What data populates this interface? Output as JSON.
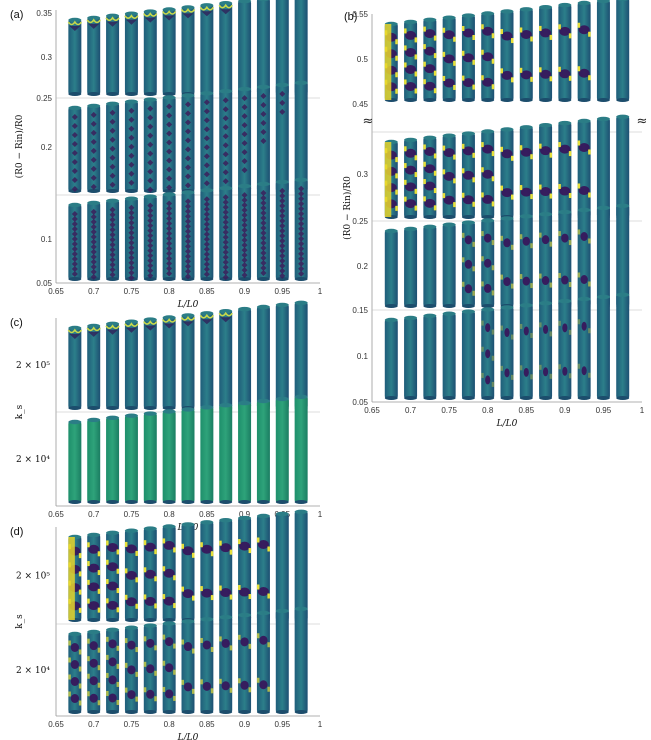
{
  "figure": {
    "break_mark": "≈",
    "panels": [
      {
        "label": "(a)",
        "ylabel": "(R0 − Rin)/R0",
        "xlabel": "L/L0",
        "xlim": [
          0.65,
          1
        ],
        "xticks": [
          "0.65",
          "0.7",
          "0.75",
          "0.8",
          "0.85",
          "0.9",
          "0.95",
          "1"
        ],
        "rows": [
          {
            "ylim": [
              0.25,
              0.35
            ],
            "yticks": [
              "0.35",
              "0.3",
              "0.25"
            ],
            "pattern": "top-buckle"
          },
          {
            "ylim": [
              0.15,
              0.25
            ],
            "yticks": [
              "0.2"
            ],
            "pattern": "diamond"
          },
          {
            "ylim": [
              0.05,
              0.15
            ],
            "yticks": [
              "0.1",
              "0.05"
            ],
            "pattern": "fine-diamond"
          }
        ]
      },
      {
        "label": "(b)",
        "ylabel": "(R0 − Rin)/R0",
        "xlabel": "L/L0",
        "xlim": [
          0.65,
          1
        ],
        "xticks": [
          "0.65",
          "0.7",
          "0.75",
          "0.8",
          "0.85",
          "0.9",
          "0.95",
          "1"
        ],
        "rows": [
          {
            "ylim": [
              0.45,
              0.55
            ],
            "yticks": [
              "0.55",
              "0.5",
              "0.45"
            ],
            "pattern": "waviness"
          },
          {
            "ylim": [
              0.25,
              0.35
            ],
            "yticks": [
              "0.3",
              "0.25"
            ],
            "pattern": "waviness"
          },
          {
            "ylim": [
              0.15,
              0.25
            ],
            "yticks": [
              "0.2",
              "0.15"
            ],
            "pattern": "waviness-partial"
          },
          {
            "ylim": [
              0.05,
              0.15
            ],
            "yticks": [
              "0.1",
              "0.05"
            ],
            "pattern": "waviness-weak"
          }
        ]
      },
      {
        "label": "(c)",
        "ylabel": "k_s",
        "xlabel": "L/L0",
        "xlim": [
          0.65,
          1
        ],
        "xticks": [
          "0.65",
          "0.7",
          "0.75",
          "0.8",
          "0.85",
          "0.9",
          "0.95",
          "1"
        ],
        "rows": [
          {
            "ylabel_value": "2 × 10⁵",
            "pattern": "top-buckle"
          },
          {
            "ylabel_value": "2 × 10⁴",
            "pattern": "green-smooth"
          }
        ]
      },
      {
        "label": "(d)",
        "ylabel": "k_s",
        "xlabel": "L/L0",
        "xlim": [
          0.65,
          1
        ],
        "xticks": [
          "0.65",
          "0.7",
          "0.75",
          "0.8",
          "0.85",
          "0.9",
          "0.95",
          "1"
        ],
        "rows": [
          {
            "ylabel_value": "2 × 10⁵",
            "pattern": "waviness"
          },
          {
            "ylabel_value": "2 × 10⁴",
            "pattern": "waviness-soft"
          }
        ]
      }
    ]
  },
  "chart_data": [
    {
      "type": "scatter",
      "title": "(a)",
      "xlabel": "L/L0",
      "ylabel": "(R0 − Rin)/R0",
      "xlim": [
        0.65,
        1
      ],
      "series": [
        {
          "x": [
            0.675,
            0.7,
            0.725,
            0.75,
            0.775,
            0.8,
            0.825,
            0.85,
            0.875,
            0.9,
            0.925,
            0.95,
            0.975
          ],
          "y": [
            0.3,
            0.3,
            0.3,
            0.3,
            0.3,
            0.3,
            0.3,
            0.3,
            0.3,
            0.3,
            0.3,
            0.3,
            0.3
          ]
        },
        {
          "x": [
            0.675,
            0.7,
            0.725,
            0.75,
            0.775,
            0.8,
            0.825,
            0.85,
            0.875,
            0.9,
            0.925,
            0.95,
            0.975
          ],
          "y": [
            0.2,
            0.2,
            0.2,
            0.2,
            0.2,
            0.2,
            0.2,
            0.2,
            0.2,
            0.2,
            0.2,
            0.2,
            0.2
          ]
        },
        {
          "x": [
            0.675,
            0.7,
            0.725,
            0.75,
            0.775,
            0.8,
            0.825,
            0.85,
            0.875,
            0.9,
            0.925,
            0.95,
            0.975
          ],
          "y": [
            0.1,
            0.1,
            0.1,
            0.1,
            0.1,
            0.1,
            0.1,
            0.1,
            0.1,
            0.1,
            0.1,
            0.1,
            0.1
          ]
        }
      ]
    },
    {
      "type": "scatter",
      "title": "(b)",
      "xlabel": "L/L0",
      "ylabel": "(R0 − Rin)/R0",
      "xlim": [
        0.65,
        1
      ],
      "series": [
        {
          "x": [
            0.675,
            0.7,
            0.725,
            0.75,
            0.775,
            0.8,
            0.825,
            0.85,
            0.875,
            0.9,
            0.925,
            0.95,
            0.975
          ],
          "y": [
            0.5,
            0.5,
            0.5,
            0.5,
            0.5,
            0.5,
            0.5,
            0.5,
            0.5,
            0.5,
            0.5,
            0.5,
            0.5
          ]
        },
        {
          "x": [
            0.675,
            0.7,
            0.725,
            0.75,
            0.775,
            0.8,
            0.825,
            0.85,
            0.875,
            0.9,
            0.925,
            0.95,
            0.975
          ],
          "y": [
            0.3,
            0.3,
            0.3,
            0.3,
            0.3,
            0.3,
            0.3,
            0.3,
            0.3,
            0.3,
            0.3,
            0.3,
            0.3
          ]
        },
        {
          "x": [
            0.675,
            0.7,
            0.725,
            0.75,
            0.775,
            0.8,
            0.825,
            0.85,
            0.875,
            0.9,
            0.925,
            0.95,
            0.975
          ],
          "y": [
            0.2,
            0.2,
            0.2,
            0.2,
            0.2,
            0.2,
            0.2,
            0.2,
            0.2,
            0.2,
            0.2,
            0.2,
            0.2
          ]
        },
        {
          "x": [
            0.675,
            0.7,
            0.725,
            0.75,
            0.775,
            0.8,
            0.825,
            0.85,
            0.875,
            0.9,
            0.925,
            0.95,
            0.975
          ],
          "y": [
            0.1,
            0.1,
            0.1,
            0.1,
            0.1,
            0.1,
            0.1,
            0.1,
            0.1,
            0.1,
            0.1,
            0.1,
            0.1
          ]
        }
      ]
    },
    {
      "type": "scatter",
      "title": "(c)",
      "xlabel": "L/L0",
      "ylabel": "k_s",
      "xlim": [
        0.65,
        1
      ],
      "categories_y": [
        "2 × 10⁵",
        "2 × 10⁴"
      ],
      "x": [
        0.675,
        0.7,
        0.725,
        0.75,
        0.775,
        0.8,
        0.825,
        0.85,
        0.875,
        0.9,
        0.925,
        0.95,
        0.975
      ]
    },
    {
      "type": "scatter",
      "title": "(d)",
      "xlabel": "L/L0",
      "ylabel": "k_s",
      "xlim": [
        0.65,
        1
      ],
      "categories_y": [
        "2 × 10⁵",
        "2 × 10⁴"
      ],
      "x": [
        0.675,
        0.7,
        0.725,
        0.75,
        0.775,
        0.8,
        0.825,
        0.85,
        0.875,
        0.9,
        0.925,
        0.95,
        0.975
      ]
    }
  ]
}
